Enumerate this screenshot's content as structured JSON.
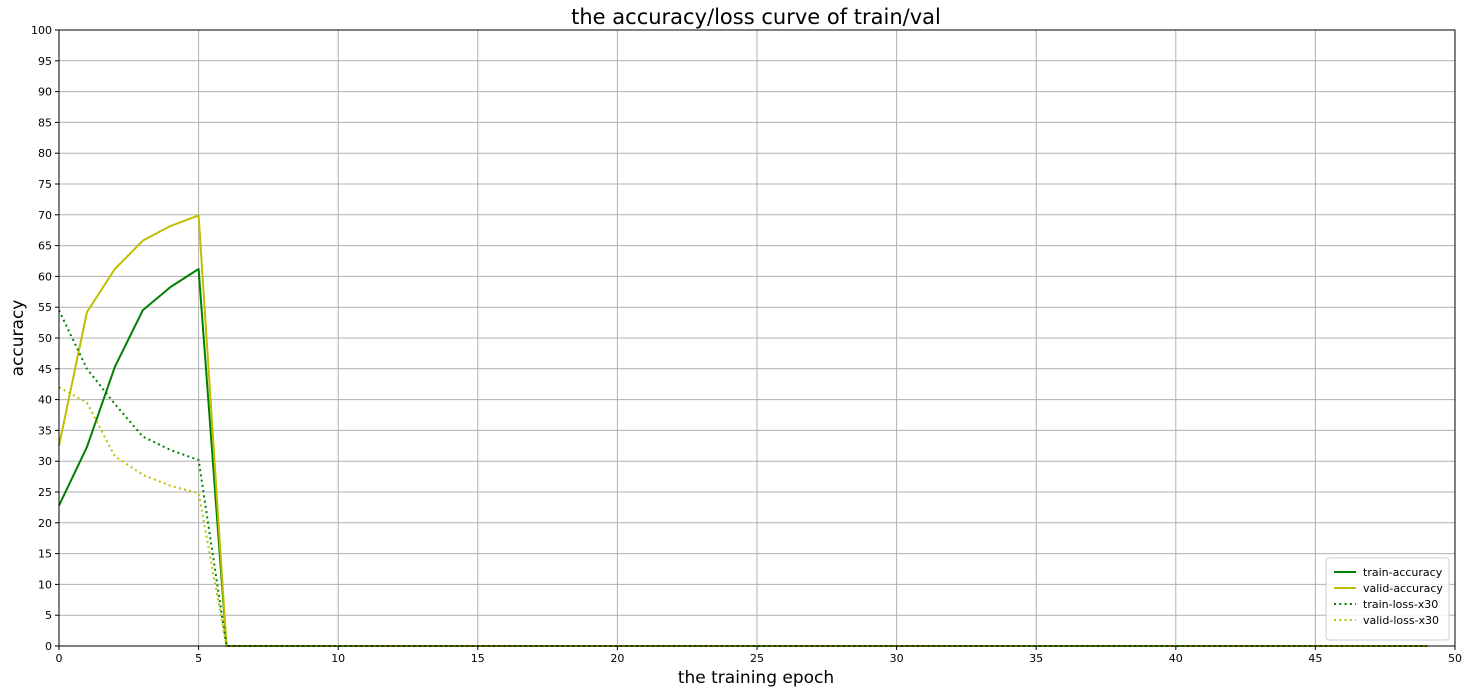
{
  "chart_data": {
    "type": "line",
    "title": "the accuracy/loss curve of train/val",
    "xlabel": "the training epoch",
    "ylabel": "accuracy",
    "xlim": [
      0,
      50
    ],
    "ylim": [
      0,
      100
    ],
    "xticks": [
      0,
      5,
      10,
      15,
      20,
      25,
      30,
      35,
      40,
      45,
      50
    ],
    "yticks": [
      0,
      5,
      10,
      15,
      20,
      25,
      30,
      35,
      40,
      45,
      50,
      55,
      60,
      65,
      70,
      75,
      80,
      85,
      90,
      95,
      100
    ],
    "grid": true,
    "legend_position": "lower-right",
    "x": [
      0,
      1,
      2,
      3,
      4,
      5,
      6,
      7,
      8,
      9,
      10,
      11,
      12,
      13,
      14,
      15,
      16,
      17,
      18,
      19,
      20,
      21,
      22,
      23,
      24,
      25,
      26,
      27,
      28,
      29,
      30,
      31,
      32,
      33,
      34,
      35,
      36,
      37,
      38,
      39,
      40,
      41,
      42,
      43,
      44,
      45,
      46,
      47,
      48,
      49
    ],
    "series": [
      {
        "name": "train-accuracy",
        "color": "#008000",
        "style": "solid",
        "values": [
          22.8,
          32.3,
          45.3,
          54.5,
          58.3,
          61.2,
          0,
          0,
          0,
          0,
          0,
          0,
          0,
          0,
          0,
          0,
          0,
          0,
          0,
          0,
          0,
          0,
          0,
          0,
          0,
          0,
          0,
          0,
          0,
          0,
          0,
          0,
          0,
          0,
          0,
          0,
          0,
          0,
          0,
          0,
          0,
          0,
          0,
          0,
          0,
          0,
          0,
          0,
          0,
          0
        ]
      },
      {
        "name": "valid-accuracy",
        "color": "#bfbf00",
        "style": "solid",
        "values": [
          32.5,
          54.2,
          61.2,
          65.8,
          68.2,
          69.9,
          0,
          0,
          0,
          0,
          0,
          0,
          0,
          0,
          0,
          0,
          0,
          0,
          0,
          0,
          0,
          0,
          0,
          0,
          0,
          0,
          0,
          0,
          0,
          0,
          0,
          0,
          0,
          0,
          0,
          0,
          0,
          0,
          0,
          0,
          0,
          0,
          0,
          0,
          0,
          0,
          0,
          0,
          0,
          0
        ]
      },
      {
        "name": "train-loss-x30",
        "color": "#008000",
        "style": "dotted",
        "values": [
          54.5,
          45.0,
          39.3,
          34.0,
          31.8,
          30.2,
          0,
          0,
          0,
          0,
          0,
          0,
          0,
          0,
          0,
          0,
          0,
          0,
          0,
          0,
          0,
          0,
          0,
          0,
          0,
          0,
          0,
          0,
          0,
          0,
          0,
          0,
          0,
          0,
          0,
          0,
          0,
          0,
          0,
          0,
          0,
          0,
          0,
          0,
          0,
          0,
          0,
          0,
          0,
          0
        ]
      },
      {
        "name": "valid-loss-x30",
        "color": "#bfbf00",
        "style": "dotted",
        "values": [
          42.0,
          39.5,
          30.8,
          27.8,
          26.0,
          24.8,
          0,
          0,
          0,
          0,
          0,
          0,
          0,
          0,
          0,
          0,
          0,
          0,
          0,
          0,
          0,
          0,
          0,
          0,
          0,
          0,
          0,
          0,
          0,
          0,
          0,
          0,
          0,
          0,
          0,
          0,
          0,
          0,
          0,
          0,
          0,
          0,
          0,
          0,
          0,
          0,
          0,
          0,
          0,
          0
        ]
      }
    ]
  }
}
